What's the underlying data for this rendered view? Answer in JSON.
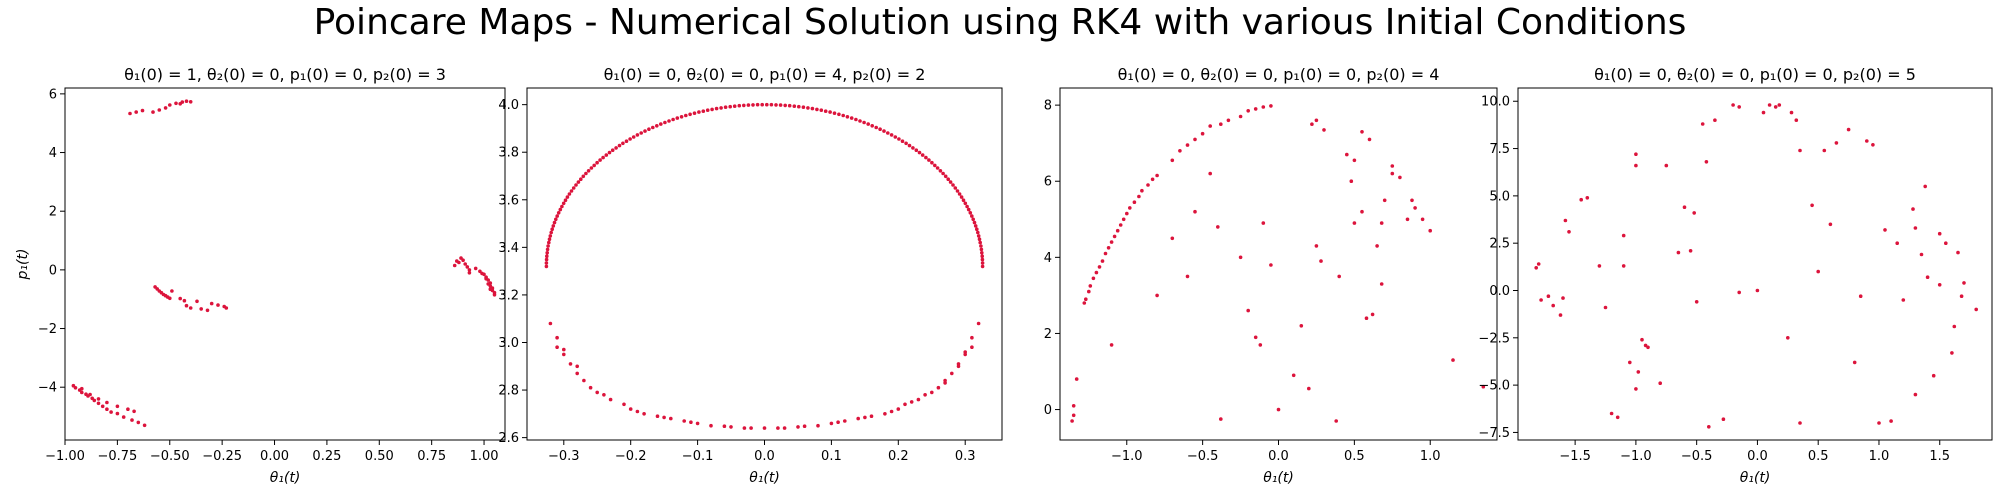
{
  "figure": {
    "title": "Poincare Maps - Numerical Solution using RK4 with various Initial Conditions"
  },
  "chart_data": [
    {
      "type": "scatter",
      "title": "θ₁(0) = 1, θ₂(0) = 0, p₁(0) = 0, p₂(0) = 3",
      "xlabel": "θ₁(t)",
      "ylabel": "p₁(t)",
      "xlim": [
        -1.0,
        1.1
      ],
      "ylim": [
        -5.8,
        6.2
      ],
      "xticks": [
        -1.0,
        -0.75,
        -0.5,
        -0.25,
        0.0,
        0.25,
        0.5,
        0.75,
        1.0
      ],
      "xtick_labels": [
        "−1.00",
        "−0.75",
        "−0.50",
        "−0.25",
        "0.00",
        "0.25",
        "0.50",
        "0.75",
        "1.00"
      ],
      "yticks": [
        -4,
        -2,
        0,
        2,
        4,
        6
      ],
      "ytick_labels": [
        "−4",
        "−2",
        "0",
        "2",
        "4",
        "6"
      ],
      "grid": false,
      "marker_color": "#dc143c",
      "points": [
        [
          -0.69,
          5.33
        ],
        [
          -0.66,
          5.38
        ],
        [
          -0.63,
          5.43
        ],
        [
          -0.58,
          5.38
        ],
        [
          -0.55,
          5.45
        ],
        [
          -0.52,
          5.52
        ],
        [
          -0.5,
          5.62
        ],
        [
          -0.47,
          5.68
        ],
        [
          -0.44,
          5.72
        ],
        [
          -0.42,
          5.75
        ],
        [
          -0.4,
          5.73
        ],
        [
          -0.45,
          5.66
        ],
        [
          -0.57,
          -0.58
        ],
        [
          -0.56,
          -0.65
        ],
        [
          -0.55,
          -0.72
        ],
        [
          -0.54,
          -0.78
        ],
        [
          -0.53,
          -0.84
        ],
        [
          -0.52,
          -0.88
        ],
        [
          -0.51,
          -0.93
        ],
        [
          -0.5,
          -0.97
        ],
        [
          -0.49,
          -0.72
        ],
        [
          -0.45,
          -0.98
        ],
        [
          -0.43,
          -1.05
        ],
        [
          -0.42,
          -1.22
        ],
        [
          -0.4,
          -1.3
        ],
        [
          -0.37,
          -1.07
        ],
        [
          -0.35,
          -1.33
        ],
        [
          -0.32,
          -1.38
        ],
        [
          -0.3,
          -1.15
        ],
        [
          -0.27,
          -1.2
        ],
        [
          -0.24,
          -1.25
        ],
        [
          -0.23,
          -1.3
        ],
        [
          -0.96,
          -3.95
        ],
        [
          -0.95,
          -4.02
        ],
        [
          -0.93,
          -4.1
        ],
        [
          -0.92,
          -4.18
        ],
        [
          -0.9,
          -4.24
        ],
        [
          -0.89,
          -4.3
        ],
        [
          -0.87,
          -4.38
        ],
        [
          -0.86,
          -4.45
        ],
        [
          -0.84,
          -4.55
        ],
        [
          -0.82,
          -4.65
        ],
        [
          -0.8,
          -4.75
        ],
        [
          -0.78,
          -4.85
        ],
        [
          -0.75,
          -4.9
        ],
        [
          -0.72,
          -5.02
        ],
        [
          -0.68,
          -5.12
        ],
        [
          -0.65,
          -5.2
        ],
        [
          -0.62,
          -5.3
        ],
        [
          -0.92,
          -4.05
        ],
        [
          -0.88,
          -4.25
        ],
        [
          -0.84,
          -4.4
        ],
        [
          -0.8,
          -4.52
        ],
        [
          -0.75,
          -4.65
        ],
        [
          -0.7,
          -4.75
        ],
        [
          -0.67,
          -4.82
        ],
        [
          0.86,
          0.15
        ],
        [
          0.87,
          0.3
        ],
        [
          0.88,
          0.25
        ],
        [
          0.89,
          0.4
        ],
        [
          0.9,
          0.33
        ],
        [
          0.91,
          0.2
        ],
        [
          0.92,
          0.1
        ],
        [
          0.93,
          0.0
        ],
        [
          0.93,
          -0.1
        ],
        [
          0.96,
          0.05
        ],
        [
          0.98,
          -0.05
        ],
        [
          1.0,
          -0.15
        ],
        [
          1.01,
          -0.25
        ],
        [
          1.02,
          -0.35
        ],
        [
          1.03,
          -0.45
        ],
        [
          1.03,
          -0.55
        ],
        [
          1.04,
          -0.62
        ],
        [
          1.04,
          -0.7
        ],
        [
          1.05,
          -0.78
        ],
        [
          1.05,
          -0.85
        ],
        [
          0.99,
          -0.12
        ],
        [
          1.01,
          -0.3
        ],
        [
          1.02,
          -0.48
        ],
        [
          1.03,
          -0.66
        ]
      ]
    },
    {
      "type": "scatter",
      "title": "θ₁(0) = 0, θ₂(0) = 0, p₁(0) = 4, p₂(0) = 2",
      "xlabel": "θ₁(t)",
      "ylabel": "",
      "xlim": [
        -0.355,
        0.355
      ],
      "ylim": [
        2.59,
        4.07
      ],
      "xticks": [
        -0.3,
        -0.2,
        -0.1,
        0.0,
        0.1,
        0.2,
        0.3
      ],
      "xtick_labels": [
        "−0.3",
        "−0.2",
        "−0.1",
        "0.0",
        "0.1",
        "0.2",
        "0.3"
      ],
      "yticks": [
        2.6,
        2.8,
        3.0,
        3.2,
        3.4,
        3.6,
        3.8,
        4.0
      ],
      "ytick_labels": [
        "2.6",
        "2.8",
        "3.0",
        "3.2",
        "3.4",
        "3.6",
        "3.8",
        "4.0"
      ],
      "grid": false,
      "marker_color": "#dc143c",
      "upper_arc": {
        "a": 0.326,
        "center_y": 3.32,
        "b": 0.68,
        "count": 150
      },
      "points": [
        [
          -0.31,
          2.98
        ],
        [
          -0.3,
          2.95
        ],
        [
          -0.29,
          2.91
        ],
        [
          -0.28,
          2.87
        ],
        [
          -0.27,
          2.84
        ],
        [
          -0.26,
          2.81
        ],
        [
          -0.25,
          2.79
        ],
        [
          -0.23,
          2.76
        ],
        [
          -0.21,
          2.74
        ],
        [
          -0.2,
          2.72
        ],
        [
          -0.18,
          2.7
        ],
        [
          -0.16,
          2.69
        ],
        [
          -0.14,
          2.68
        ],
        [
          -0.12,
          2.67
        ],
        [
          -0.1,
          2.66
        ],
        [
          -0.08,
          2.65
        ],
        [
          -0.05,
          2.645
        ],
        [
          -0.03,
          2.64
        ],
        [
          0.0,
          2.64
        ],
        [
          0.03,
          2.64
        ],
        [
          0.05,
          2.645
        ],
        [
          0.08,
          2.65
        ],
        [
          0.1,
          2.66
        ],
        [
          0.12,
          2.67
        ],
        [
          0.14,
          2.68
        ],
        [
          0.16,
          2.69
        ],
        [
          0.18,
          2.7
        ],
        [
          0.2,
          2.72
        ],
        [
          0.21,
          2.74
        ],
        [
          0.23,
          2.76
        ],
        [
          0.25,
          2.79
        ],
        [
          0.26,
          2.81
        ],
        [
          0.27,
          2.84
        ],
        [
          0.28,
          2.87
        ],
        [
          0.29,
          2.91
        ],
        [
          0.3,
          2.95
        ],
        [
          0.31,
          2.98
        ],
        [
          -0.3,
          2.97
        ],
        [
          -0.28,
          2.9
        ],
        [
          -0.24,
          2.78
        ],
        [
          -0.19,
          2.71
        ],
        [
          -0.15,
          2.685
        ],
        [
          -0.11,
          2.665
        ],
        [
          -0.06,
          2.648
        ],
        [
          -0.02,
          2.64
        ],
        [
          0.02,
          2.64
        ],
        [
          0.06,
          2.648
        ],
        [
          0.11,
          2.665
        ],
        [
          0.15,
          2.685
        ],
        [
          0.19,
          2.71
        ],
        [
          0.22,
          2.75
        ],
        [
          0.24,
          2.78
        ],
        [
          0.27,
          2.83
        ],
        [
          0.29,
          2.9
        ],
        [
          0.3,
          2.96
        ],
        [
          -0.32,
          3.08
        ],
        [
          -0.31,
          3.02
        ],
        [
          0.31,
          3.02
        ],
        [
          0.32,
          3.08
        ]
      ]
    },
    {
      "type": "scatter",
      "title": "θ₁(0) = 0, θ₂(0) = 0, p₁(0) = 0, p₂(0) = 4",
      "xlabel": "θ₁(t)",
      "ylabel": "",
      "xlim": [
        -1.44,
        1.44
      ],
      "ylim": [
        -0.8,
        8.45
      ],
      "xticks": [
        -1.0,
        -0.5,
        0.0,
        0.5,
        1.0
      ],
      "xtick_labels": [
        "−1.0",
        "−0.5",
        "0.0",
        "0.5",
        "1.0"
      ],
      "yticks": [
        0,
        2,
        4,
        6,
        8
      ],
      "ytick_labels": [
        "0",
        "2",
        "4",
        "6",
        "8"
      ],
      "grid": false,
      "marker_color": "#dc143c",
      "points": [
        [
          -1.33,
          0.8
        ],
        [
          -1.35,
          0.1
        ],
        [
          -1.36,
          -0.3
        ],
        [
          -1.35,
          -0.15
        ],
        [
          -1.28,
          2.8
        ],
        [
          -1.27,
          2.9
        ],
        [
          -1.25,
          3.1
        ],
        [
          -1.24,
          3.25
        ],
        [
          -1.22,
          3.45
        ],
        [
          -1.2,
          3.6
        ],
        [
          -1.18,
          3.75
        ],
        [
          -1.16,
          3.9
        ],
        [
          -1.14,
          4.1
        ],
        [
          -1.12,
          4.25
        ],
        [
          -1.1,
          4.4
        ],
        [
          -1.08,
          4.55
        ],
        [
          -1.06,
          4.7
        ],
        [
          -1.04,
          4.85
        ],
        [
          -1.02,
          5.0
        ],
        [
          -1.0,
          5.15
        ],
        [
          -0.98,
          5.3
        ],
        [
          -0.95,
          5.45
        ],
        [
          -0.92,
          5.6
        ],
        [
          -0.9,
          5.75
        ],
        [
          -0.86,
          5.9
        ],
        [
          -0.83,
          6.05
        ],
        [
          -0.8,
          6.15
        ],
        [
          -0.7,
          6.55
        ],
        [
          -0.65,
          6.8
        ],
        [
          -0.6,
          6.95
        ],
        [
          -0.55,
          7.1
        ],
        [
          -0.5,
          7.25
        ],
        [
          -0.45,
          7.45
        ],
        [
          -0.38,
          7.5
        ],
        [
          -0.33,
          7.6
        ],
        [
          -0.25,
          7.7
        ],
        [
          -0.2,
          7.85
        ],
        [
          -0.15,
          7.9
        ],
        [
          -0.1,
          7.95
        ],
        [
          -0.05,
          7.98
        ],
        [
          -1.1,
          1.7
        ],
        [
          -0.8,
          3.0
        ],
        [
          -0.7,
          4.5
        ],
        [
          -0.6,
          3.5
        ],
        [
          -0.55,
          5.2
        ],
        [
          -0.45,
          6.2
        ],
        [
          -0.4,
          4.8
        ],
        [
          -0.38,
          -0.25
        ],
        [
          -0.25,
          4.0
        ],
        [
          -0.2,
          2.6
        ],
        [
          -0.15,
          1.9
        ],
        [
          -0.12,
          1.7
        ],
        [
          -0.1,
          4.9
        ],
        [
          -0.05,
          3.8
        ],
        [
          0.0,
          0.0
        ],
        [
          0.1,
          0.9
        ],
        [
          0.15,
          2.2
        ],
        [
          0.2,
          0.55
        ],
        [
          0.22,
          7.5
        ],
        [
          0.25,
          4.3
        ],
        [
          0.25,
          7.6
        ],
        [
          0.28,
          3.9
        ],
        [
          0.3,
          7.35
        ],
        [
          0.38,
          -0.3
        ],
        [
          0.4,
          3.5
        ],
        [
          0.45,
          6.7
        ],
        [
          0.48,
          6.0
        ],
        [
          0.5,
          4.9
        ],
        [
          0.55,
          7.3
        ],
        [
          0.58,
          2.4
        ],
        [
          0.6,
          7.1
        ],
        [
          0.62,
          2.5
        ],
        [
          0.65,
          4.3
        ],
        [
          0.68,
          3.3
        ],
        [
          0.7,
          5.5
        ],
        [
          0.75,
          6.4
        ],
        [
          0.8,
          6.1
        ],
        [
          0.85,
          5.0
        ],
        [
          0.88,
          5.5
        ],
        [
          0.9,
          5.3
        ],
        [
          0.95,
          5.0
        ],
        [
          1.0,
          4.7
        ],
        [
          1.15,
          1.3
        ],
        [
          1.35,
          0.6
        ],
        [
          0.68,
          4.9
        ],
        [
          0.75,
          6.2
        ],
        [
          0.5,
          6.55
        ],
        [
          0.55,
          5.2
        ]
      ]
    },
    {
      "type": "scatter",
      "title": "θ₁(0) = 0, θ₂(0) = 0, p₁(0) = 0, p₂(0) = 5",
      "xlabel": "θ₁(t)",
      "ylabel": "",
      "xlim": [
        -1.97,
        1.93
      ],
      "ylim": [
        -7.9,
        10.7
      ],
      "xticks": [
        -1.5,
        -1.0,
        -0.5,
        0.0,
        0.5,
        1.0,
        1.5
      ],
      "xtick_labels": [
        "−1.5",
        "−1.0",
        "−0.5",
        "0.0",
        "0.5",
        "1.0",
        "1.5"
      ],
      "yticks": [
        -7.5,
        -5.0,
        -2.5,
        0.0,
        2.5,
        5.0,
        7.5,
        10.0
      ],
      "ytick_labels": [
        "−7.5",
        "−5.0",
        "−2.5",
        "0.0",
        "2.5",
        "5.0",
        "7.5",
        "10.0"
      ],
      "grid": false,
      "marker_color": "#dc143c",
      "points": [
        [
          -1.82,
          1.2
        ],
        [
          -1.8,
          1.4
        ],
        [
          -1.78,
          -0.5
        ],
        [
          -1.72,
          -0.3
        ],
        [
          -1.68,
          -0.8
        ],
        [
          -1.62,
          -1.3
        ],
        [
          -1.6,
          -0.4
        ],
        [
          -1.58,
          3.7
        ],
        [
          -1.55,
          3.1
        ],
        [
          -1.45,
          4.8
        ],
        [
          -1.4,
          4.9
        ],
        [
          -1.3,
          1.3
        ],
        [
          -1.25,
          -0.9
        ],
        [
          -1.2,
          -6.5
        ],
        [
          -1.15,
          -6.7
        ],
        [
          -1.1,
          2.9
        ],
        [
          -1.1,
          1.3
        ],
        [
          -1.05,
          -3.8
        ],
        [
          -1.0,
          7.2
        ],
        [
          -1.0,
          6.6
        ],
        [
          -1.0,
          -5.2
        ],
        [
          -0.98,
          -4.3
        ],
        [
          -0.95,
          -2.6
        ],
        [
          -0.92,
          -2.9
        ],
        [
          -0.9,
          -3.0
        ],
        [
          -0.8,
          -4.9
        ],
        [
          -0.75,
          6.6
        ],
        [
          -0.65,
          2.0
        ],
        [
          -0.6,
          4.4
        ],
        [
          -0.55,
          2.1
        ],
        [
          -0.52,
          4.1
        ],
        [
          -0.5,
          -0.6
        ],
        [
          -0.45,
          8.8
        ],
        [
          -0.42,
          6.8
        ],
        [
          -0.4,
          -7.2
        ],
        [
          -0.35,
          9.0
        ],
        [
          -0.28,
          -6.8
        ],
        [
          -0.2,
          9.8
        ],
        [
          -0.15,
          9.7
        ],
        [
          -0.15,
          -0.1
        ],
        [
          0.0,
          0.0
        ],
        [
          0.05,
          9.4
        ],
        [
          0.1,
          9.8
        ],
        [
          0.15,
          9.7
        ],
        [
          0.18,
          9.8
        ],
        [
          0.25,
          -2.5
        ],
        [
          0.28,
          9.4
        ],
        [
          0.32,
          9.0
        ],
        [
          0.35,
          7.4
        ],
        [
          0.35,
          -7.0
        ],
        [
          0.45,
          4.5
        ],
        [
          0.5,
          1.0
        ],
        [
          0.55,
          7.4
        ],
        [
          0.6,
          3.5
        ],
        [
          0.65,
          7.8
        ],
        [
          0.75,
          8.5
        ],
        [
          0.8,
          -3.8
        ],
        [
          0.85,
          -0.3
        ],
        [
          0.9,
          7.9
        ],
        [
          0.95,
          7.7
        ],
        [
          1.0,
          -7.0
        ],
        [
          1.05,
          3.2
        ],
        [
          1.1,
          -6.9
        ],
        [
          1.15,
          2.5
        ],
        [
          1.2,
          -0.5
        ],
        [
          1.28,
          4.3
        ],
        [
          1.3,
          3.3
        ],
        [
          1.3,
          -5.5
        ],
        [
          1.35,
          1.9
        ],
        [
          1.38,
          5.5
        ],
        [
          1.4,
          0.7
        ],
        [
          1.45,
          -4.5
        ],
        [
          1.5,
          0.3
        ],
        [
          1.5,
          3.0
        ],
        [
          1.55,
          2.5
        ],
        [
          1.6,
          -3.3
        ],
        [
          1.65,
          2.0
        ],
        [
          1.68,
          -0.3
        ],
        [
          1.7,
          0.4
        ],
        [
          1.8,
          -1.0
        ],
        [
          1.62,
          -1.9
        ]
      ]
    }
  ]
}
